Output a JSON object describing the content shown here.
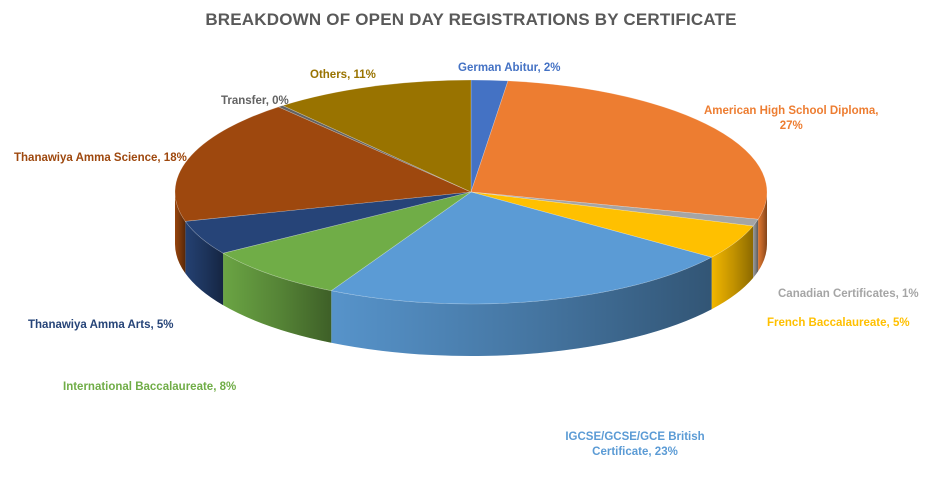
{
  "chart_data": {
    "type": "pie",
    "title": "BREAKDOWN OF OPEN DAY REGISTRATIONS BY CERTIFICATE",
    "three_d": true,
    "slices": [
      {
        "label": "German Abitur",
        "value": 2,
        "value_text": "2%",
        "color": "#4472c4"
      },
      {
        "label": "American High School Diploma,",
        "value": 27,
        "value_text": "27%",
        "color": "#ed7d31"
      },
      {
        "label": "Canadian Certificates,",
        "value": 1,
        "value_text": "1%",
        "color": "#a5a5a5"
      },
      {
        "label": "French Baccalaureate,",
        "value": 5,
        "value_text": "5%",
        "color": "#ffc000"
      },
      {
        "label": "IGCSE/GCSE/GCE British Certificate,",
        "value": 23,
        "value_text": "23%",
        "color": "#5b9bd5"
      },
      {
        "label": "International Baccalaureate,",
        "value": 8,
        "value_text": "8%",
        "color": "#70ad47"
      },
      {
        "label": "Thanawiya Amma Arts,",
        "value": 5,
        "value_text": "5%",
        "color": "#264478"
      },
      {
        "label": "Thanawiya Amma Science,",
        "value": 18,
        "value_text": "18%",
        "color": "#9e480e"
      },
      {
        "label": "Transfer,",
        "value": 0,
        "value_text": "0%",
        "color": "#636363"
      },
      {
        "label": "Others,",
        "value": 11,
        "value_text": "11%",
        "color": "#997300"
      }
    ]
  }
}
